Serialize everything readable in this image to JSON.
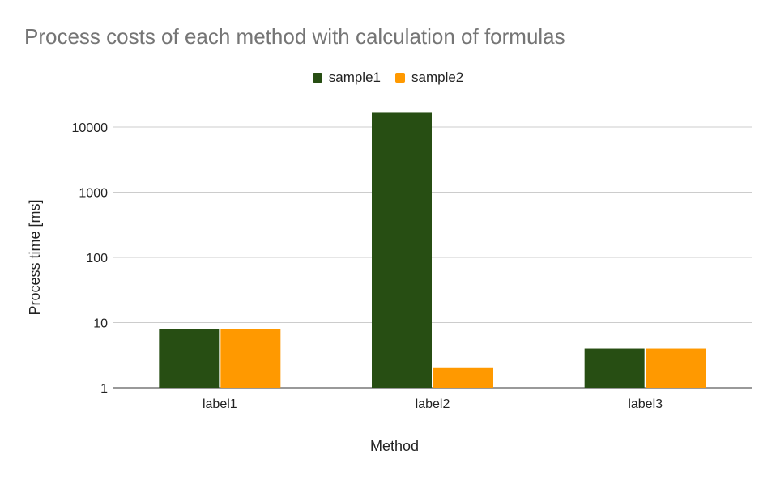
{
  "chart_data": {
    "type": "bar",
    "title": "Process costs of each method with calculation of formulas",
    "xlabel": "Method",
    "ylabel": "Process time [ms]",
    "categories": [
      "label1",
      "label2",
      "label3"
    ],
    "series": [
      {
        "name": "sample1",
        "color": "#274e13",
        "values": [
          8,
          17000,
          4
        ]
      },
      {
        "name": "sample2",
        "color": "#ff9900",
        "values": [
          8,
          2,
          4
        ]
      }
    ],
    "y_scale": "log",
    "ylim": [
      1,
      20000
    ],
    "yticks": [
      1,
      10,
      100,
      1000,
      10000
    ],
    "ytick_labels": [
      "1",
      "10",
      "100",
      "1000",
      "10000"
    ],
    "grid": true,
    "legend_position": "top"
  }
}
